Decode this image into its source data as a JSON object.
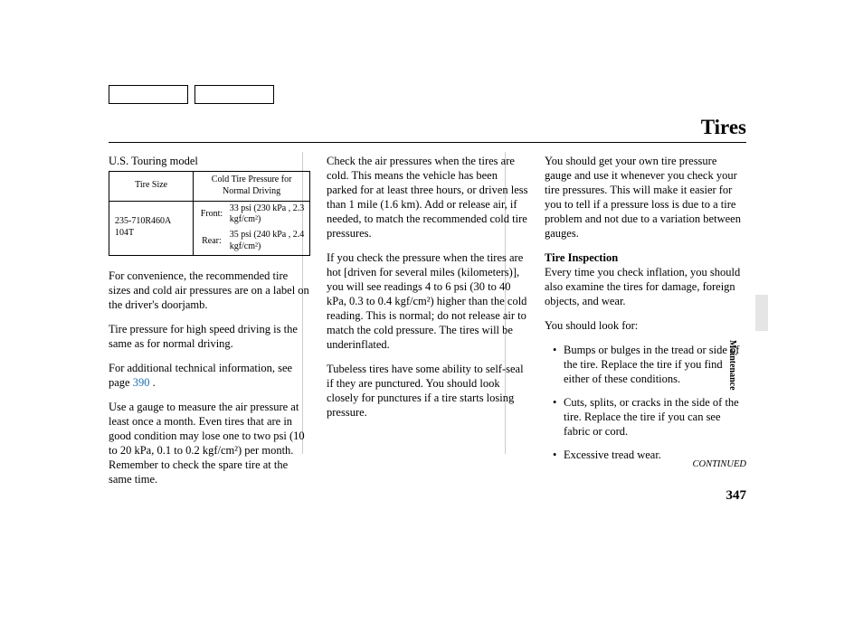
{
  "page": {
    "title": "Tires",
    "number": "347",
    "continued": "CONTINUED",
    "sideTab": "Maintenance"
  },
  "col1": {
    "modelHeading": "U.S. Touring model",
    "table": {
      "hdrSize": "Tire Size",
      "hdrPressure1": "Cold Tire Pressure for",
      "hdrPressure2": "Normal Driving",
      "size": "235-710R460A 104T",
      "frontLabel": "Front:",
      "frontVal": "33 psi (230 kPa , 2.3 kgf/cm²)",
      "rearLabel": "Rear:",
      "rearVal": "35 psi (240 kPa , 2.4 kgf/cm²)"
    },
    "p1": "For convenience, the recommended tire sizes and cold air pressures are on a label on the driver's doorjamb.",
    "p2": "Tire pressure for high speed driving is the same as for normal driving.",
    "p3a": "For additional technical information, see page ",
    "p3link": "390",
    "p3b": " .",
    "p4": "Use a gauge to measure the air pressure at least once a month. Even tires that are in good condition may lose one to two psi (10 to 20 kPa, 0.1 to 0.2 kgf/cm²) per month. Remember to check the spare tire at the same time."
  },
  "col2": {
    "p1": "Check the air pressures when the tires are cold. This means the vehicle has been parked for at least three hours, or driven less than 1 mile (1.6 km). Add or release air, if needed, to match the recommended cold tire pressures.",
    "p2": "If you check the pressure when the tires are hot [driven for several miles (kilometers)], you will see readings 4 to 6 psi (30 to 40 kPa, 0.3 to 0.4 kgf/cm²) higher than the cold reading. This is normal; do not release air to match the cold pressure. The tires will be underinflated.",
    "p3": "Tubeless tires have some ability to self-seal if they are punctured. You should look closely for punctures if a tire starts losing pressure."
  },
  "col3": {
    "p1": "You should get your own tire pressure gauge and use it whenever you check your tire pressures. This will make it easier for you to tell if a pressure loss is due to a tire problem and not due to a variation between gauges.",
    "sectionHead": "Tire Inspection",
    "p2": "Every time you check inflation, you should also examine the tires for damage, foreign objects, and wear.",
    "p3": "You should look for:",
    "b1": "Bumps or bulges in the tread or side of the tire. Replace the tire if you find either of these conditions.",
    "b2": "Cuts, splits, or cracks in the side of the tire. Replace the tire if you can see fabric or cord.",
    "b3": "Excessive tread wear."
  }
}
